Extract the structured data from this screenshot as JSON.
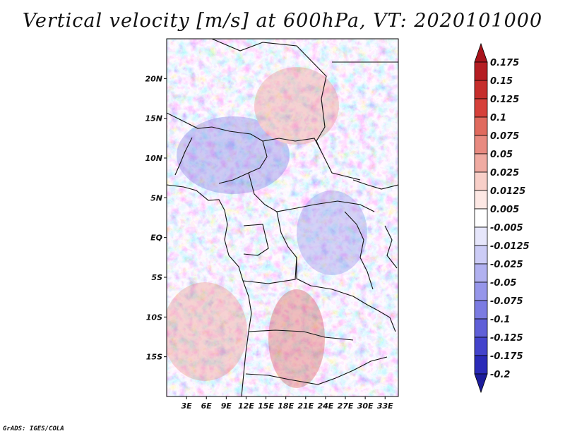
{
  "title": "Vertical velocity [m/s] at 600hPa, VT: 2020101000",
  "credit": "GrADS: IGES/COLA",
  "map": {
    "lon_range": [
      0,
      35
    ],
    "lat_range": [
      -20,
      25
    ],
    "lat_labels": [
      {
        "label": "20N",
        "lat": 20
      },
      {
        "label": "15N",
        "lat": 15
      },
      {
        "label": "10N",
        "lat": 10
      },
      {
        "label": "5N",
        "lat": 5
      },
      {
        "label": "EQ",
        "lat": 0
      },
      {
        "label": "5S",
        "lat": -5
      },
      {
        "label": "10S",
        "lat": -10
      },
      {
        "label": "15S",
        "lat": -15
      }
    ],
    "lon_labels": [
      {
        "label": "3E",
        "lon": 3
      },
      {
        "label": "6E",
        "lon": 6
      },
      {
        "label": "9E",
        "lon": 9
      },
      {
        "label": "12E",
        "lon": 12
      },
      {
        "label": "15E",
        "lon": 15
      },
      {
        "label": "18E",
        "lon": 18
      },
      {
        "label": "21E",
        "lon": 21
      },
      {
        "label": "24E",
        "lon": 24
      },
      {
        "label": "27E",
        "lon": 27
      },
      {
        "label": "30E",
        "lon": 30
      },
      {
        "label": "33E",
        "lon": 33
      }
    ]
  },
  "colorbar": {
    "labels": [
      "0.175",
      "0.15",
      "0.125",
      "0.1",
      "0.075",
      "0.05",
      "0.025",
      "0.0125",
      "0.005",
      "-0.005",
      "-0.0125",
      "-0.025",
      "-0.05",
      "-0.075",
      "-0.1",
      "-0.125",
      "-0.175",
      "-0.2"
    ],
    "colors": [
      "#a8141c",
      "#b51d22",
      "#c62e2c",
      "#d6403a",
      "#e06a5e",
      "#e88a80",
      "#f0aba2",
      "#f8cfc8",
      "#fde8e4",
      "#ffffff",
      "#e6e6fb",
      "#ccccf6",
      "#b1b1f0",
      "#9696ea",
      "#7b7be2",
      "#5f5fd8",
      "#4343cc",
      "#2a2ab8",
      "#1c1c9c"
    ]
  }
}
